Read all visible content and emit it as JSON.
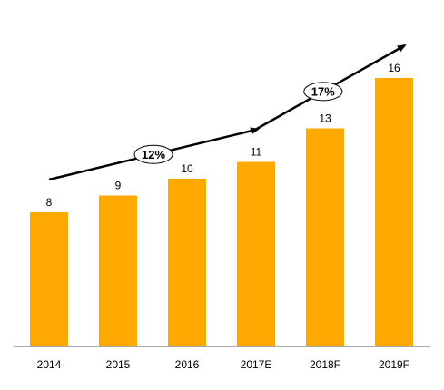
{
  "chart_data": {
    "type": "bar",
    "categories": [
      "2014",
      "2015",
      "2016",
      "2017E",
      "2018F",
      "2019F"
    ],
    "values": [
      8,
      9,
      10,
      11,
      13,
      16
    ],
    "data_labels": [
      "8",
      "9",
      "10",
      "11",
      "13",
      "16"
    ],
    "title": "",
    "xlabel": "",
    "ylabel": "",
    "ylim": [
      0,
      16
    ],
    "grid": false,
    "bar_color": "#FFA800",
    "annotations": [
      {
        "text": "12%",
        "from_category": 0,
        "to_category": 3
      },
      {
        "text": "17%",
        "from_category": 3,
        "to_category": 5
      }
    ]
  }
}
